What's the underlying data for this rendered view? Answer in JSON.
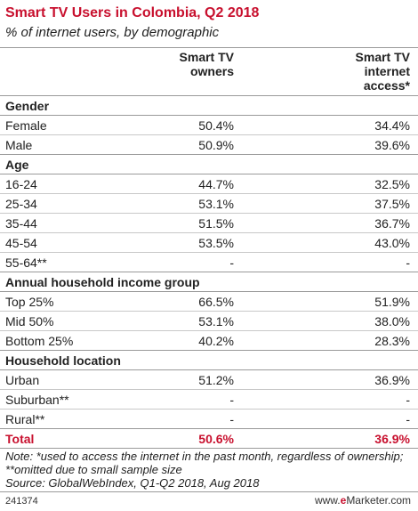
{
  "title": "Smart TV Users in Colombia, Q2 2018",
  "subtitle": "% of internet users, by demographic",
  "columns": {
    "col1": [
      "Smart TV",
      "owners"
    ],
    "col2": [
      "Smart TV",
      "internet",
      "access*"
    ]
  },
  "rows": [
    {
      "label": "Gender",
      "kind": "section"
    },
    {
      "label": "Female",
      "v1": "50.4%",
      "v2": "34.4%"
    },
    {
      "label": "Male",
      "v1": "50.9%",
      "v2": "39.6%"
    },
    {
      "label": "Age",
      "kind": "section"
    },
    {
      "label": "16-24",
      "v1": "44.7%",
      "v2": "32.5%"
    },
    {
      "label": "25-34",
      "v1": "53.1%",
      "v2": "37.5%"
    },
    {
      "label": "35-44",
      "v1": "51.5%",
      "v2": "36.7%"
    },
    {
      "label": "45-54",
      "v1": "53.5%",
      "v2": "43.0%"
    },
    {
      "label": "55-64**",
      "v1": "-",
      "v2": "-"
    },
    {
      "label": "Annual household income group",
      "kind": "section"
    },
    {
      "label": "Top 25%",
      "v1": "66.5%",
      "v2": "51.9%"
    },
    {
      "label": "Mid 50%",
      "v1": "53.1%",
      "v2": "38.0%"
    },
    {
      "label": "Bottom 25%",
      "v1": "40.2%",
      "v2": "28.3%"
    },
    {
      "label": "Household location",
      "kind": "section"
    },
    {
      "label": "Urban",
      "v1": "51.2%",
      "v2": "36.9%"
    },
    {
      "label": "Suburban**",
      "v1": "-",
      "v2": "-"
    },
    {
      "label": "Rural**",
      "v1": "-",
      "v2": "-"
    },
    {
      "label": "Total",
      "v1": "50.6%",
      "v2": "36.9%",
      "kind": "total"
    }
  ],
  "note": "Note: *used to access the internet in the past month, regardless of ownership; **omitted due to small sample size",
  "source": "Source: GlobalWebIndex, Q1-Q2 2018, Aug 2018",
  "footer_id": "241374",
  "brand": {
    "prefix": "www.",
    "accent": "e",
    "rest": "Marketer.com"
  },
  "colors": {
    "accent": "#c8102e",
    "text": "#222222",
    "rule": "#9a9a9a"
  },
  "chart_data": {
    "type": "table",
    "title": "Smart TV Users in Colombia, Q2 2018",
    "subtitle": "% of internet users, by demographic",
    "columns": [
      "Smart TV owners",
      "Smart TV internet access*"
    ],
    "groups": [
      {
        "name": "Gender",
        "rows": [
          {
            "label": "Female",
            "values": [
              50.4,
              34.4
            ]
          },
          {
            "label": "Male",
            "values": [
              50.9,
              39.6
            ]
          }
        ]
      },
      {
        "name": "Age",
        "rows": [
          {
            "label": "16-24",
            "values": [
              44.7,
              32.5
            ]
          },
          {
            "label": "25-34",
            "values": [
              53.1,
              37.5
            ]
          },
          {
            "label": "35-44",
            "values": [
              51.5,
              36.7
            ]
          },
          {
            "label": "45-54",
            "values": [
              53.5,
              43.0
            ]
          },
          {
            "label": "55-64**",
            "values": [
              null,
              null
            ]
          }
        ]
      },
      {
        "name": "Annual household income group",
        "rows": [
          {
            "label": "Top 25%",
            "values": [
              66.5,
              51.9
            ]
          },
          {
            "label": "Mid 50%",
            "values": [
              53.1,
              38.0
            ]
          },
          {
            "label": "Bottom 25%",
            "values": [
              40.2,
              28.3
            ]
          }
        ]
      },
      {
        "name": "Household location",
        "rows": [
          {
            "label": "Urban",
            "values": [
              51.2,
              36.9
            ]
          },
          {
            "label": "Suburban**",
            "values": [
              null,
              null
            ]
          },
          {
            "label": "Rural**",
            "values": [
              null,
              null
            ]
          }
        ]
      }
    ],
    "total": {
      "label": "Total",
      "values": [
        50.6,
        36.9
      ]
    }
  }
}
